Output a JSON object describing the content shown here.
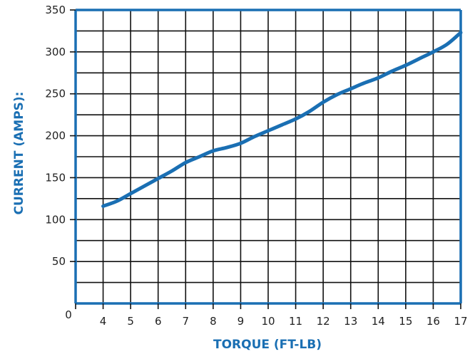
{
  "chart_data": {
    "type": "line",
    "xlabel": "TORQUE (FT-LB)",
    "ylabel": "CURRENT (AMPS):",
    "xlim": [
      3,
      17
    ],
    "ylim": [
      0,
      350
    ],
    "origin_label": "0",
    "x_ticks": [
      4,
      5,
      6,
      7,
      8,
      9,
      10,
      11,
      12,
      13,
      14,
      15,
      16,
      17
    ],
    "y_ticks": [
      50,
      100,
      150,
      200,
      250,
      300,
      350
    ],
    "grid": true,
    "colors": {
      "axis": "#1a6fb3",
      "series": "#1a6fb3",
      "grid": "#111111",
      "tick_text": "#222222"
    },
    "series": [
      {
        "x": [
          4.0,
          4.5,
          5.0,
          5.5,
          6.0,
          6.5,
          7.0,
          7.5,
          8.0,
          8.5,
          9.0,
          9.5,
          10.0,
          10.5,
          11.0,
          11.5,
          12.0,
          12.5,
          13.0,
          13.5,
          14.0,
          14.5,
          15.0,
          15.5,
          16.0,
          16.5,
          17.0
        ],
        "values": [
          116,
          122,
          131,
          140,
          149,
          158,
          168,
          175,
          182,
          186,
          191,
          199,
          206,
          213,
          220,
          229,
          240,
          249,
          256,
          263,
          269,
          277,
          284,
          292,
          300,
          309,
          323
        ]
      }
    ]
  }
}
